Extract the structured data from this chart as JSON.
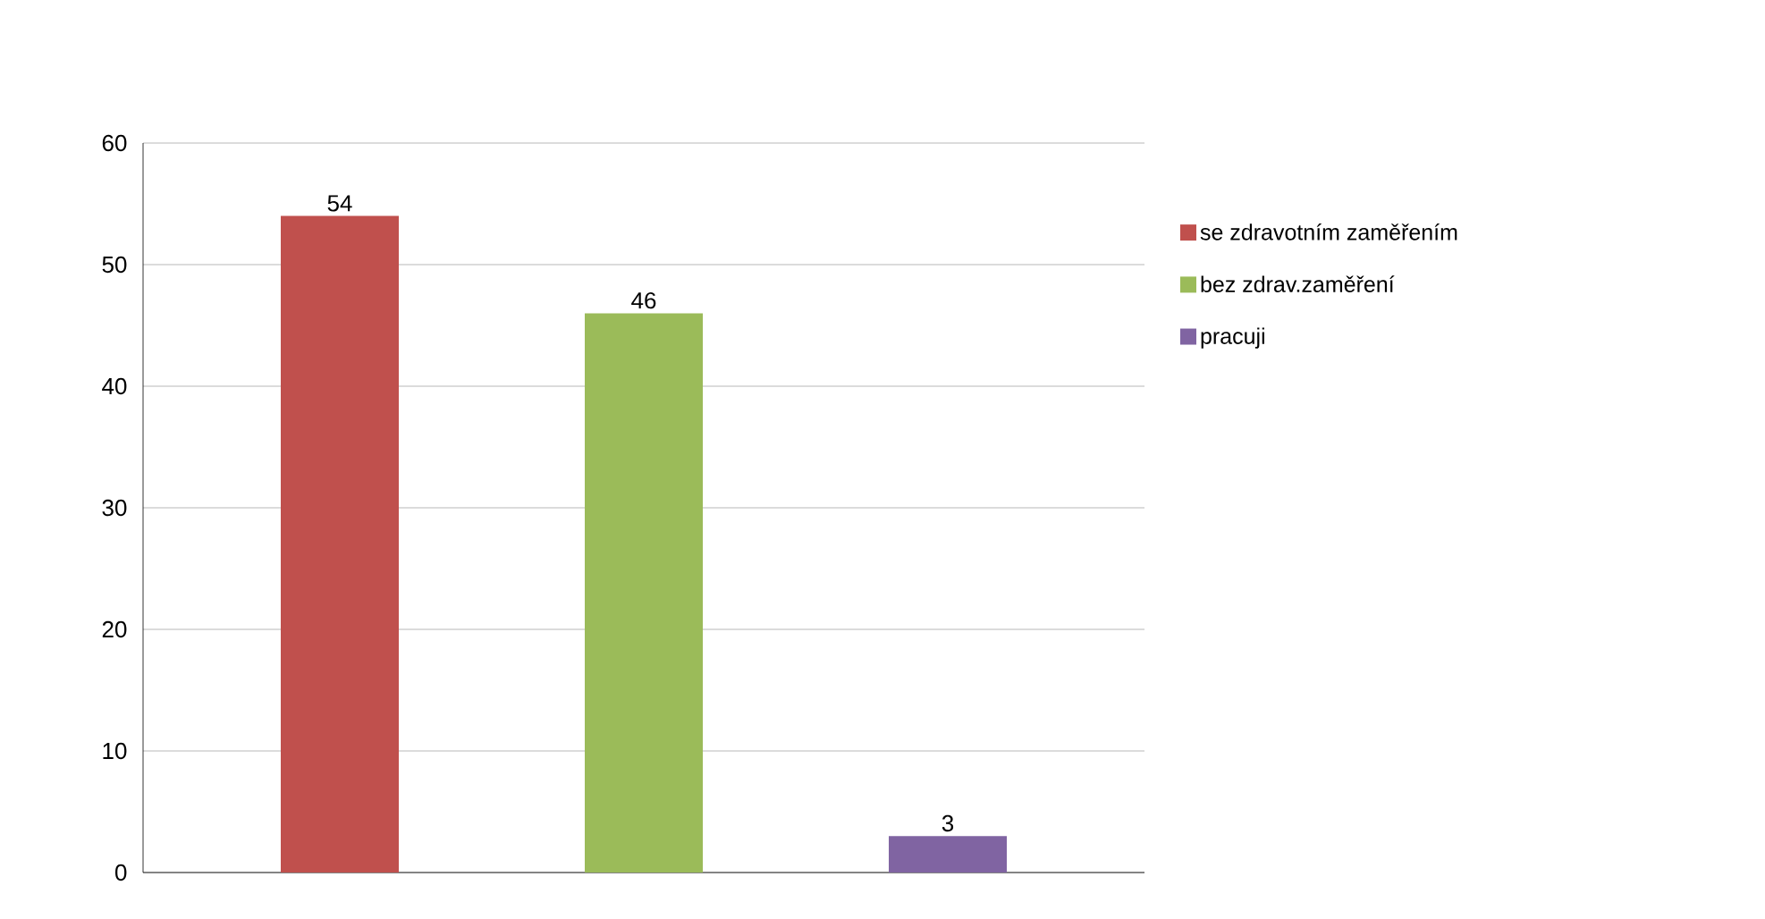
{
  "chart_data": {
    "type": "bar",
    "categories": [
      null
    ],
    "series": [
      {
        "name": "se zdravotním zaměřením",
        "color": "#c0504d",
        "values": [
          54
        ]
      },
      {
        "name": "bez zdrav.zaměření",
        "color": "#9bbb59",
        "values": [
          46
        ]
      },
      {
        "name": "pracuji",
        "color": "#8064a2",
        "values": [
          3
        ]
      }
    ],
    "ylim": [
      0,
      60
    ],
    "yticks": [
      0,
      10,
      20,
      30,
      40,
      50,
      60
    ],
    "grid": "y",
    "legend": "right",
    "data_labels": true
  }
}
